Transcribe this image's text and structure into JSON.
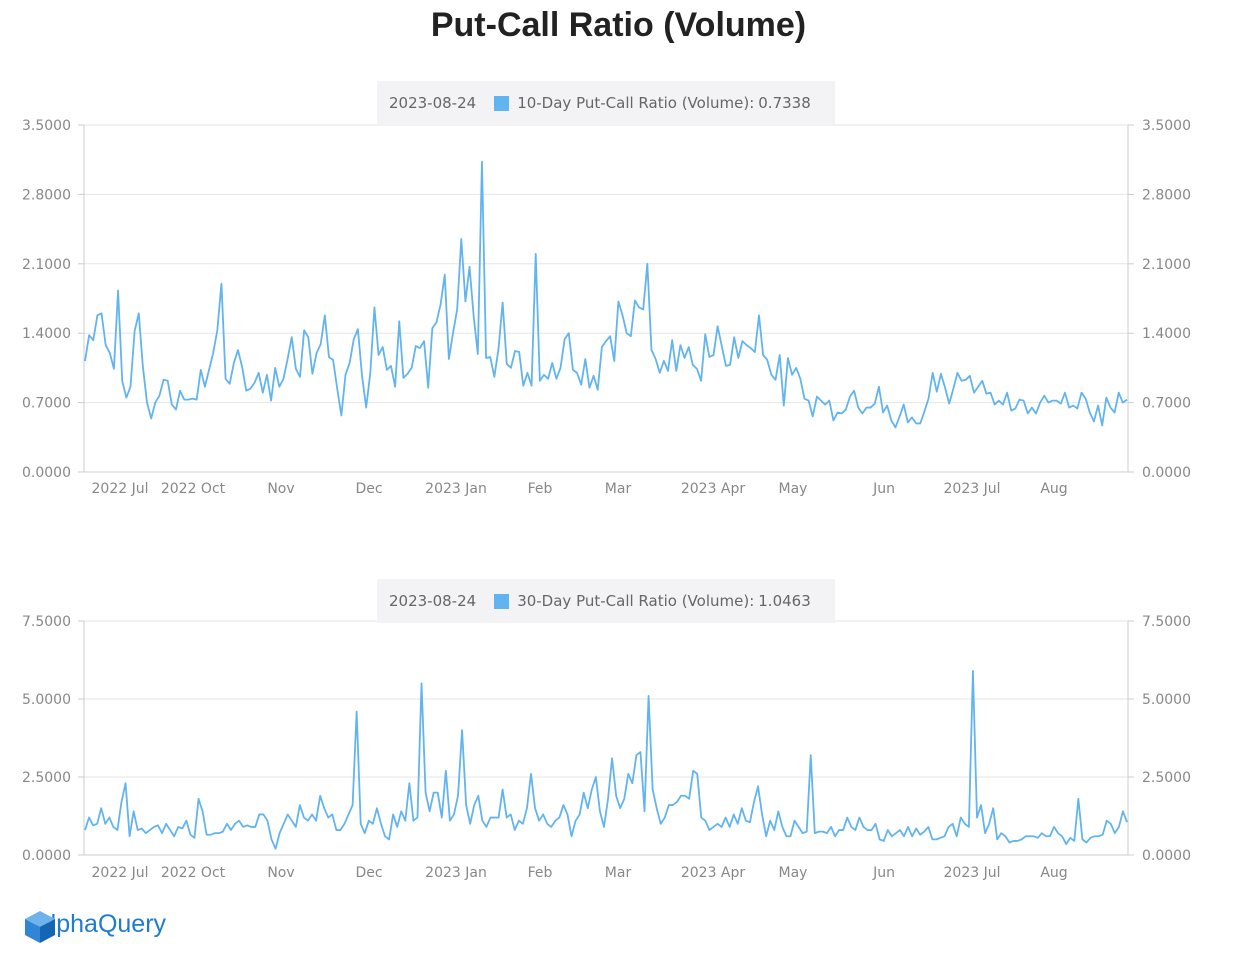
{
  "title": "Put-Call Ratio (Volume)",
  "brand": {
    "name": "AlphaQuery",
    "color": "#1f7bd1",
    "icon": "cube-logo-icon"
  },
  "colors": {
    "line": "#62b4f0",
    "grid": "#e6e6e6",
    "axis": "#cccccc",
    "tick_text": "#888888",
    "legend_bg": "#f3f3f5"
  },
  "chart_data": [
    {
      "type": "line",
      "legend": {
        "date": "2023-08-24",
        "label": "10-Day Put-Call Ratio (Volume):",
        "value": "0.7338"
      },
      "x_tick_labels": [
        "2022 Jul",
        "2022 Oct",
        "Nov",
        "Dec",
        "2023 Jan",
        "Feb",
        "Mar",
        "2023 Apr",
        "May",
        "Jun",
        "2023 Jul",
        "Aug"
      ],
      "y_tick_labels": [
        "0.0000",
        "0.7000",
        "1.4000",
        "2.1000",
        "2.8000",
        "3.5000"
      ],
      "ylim": [
        0,
        3.5
      ],
      "series": [
        {
          "name": "10-Day Put-Call Ratio (Volume)",
          "values": [
            1.12,
            1.38,
            1.33,
            1.58,
            1.6,
            1.28,
            1.2,
            1.04,
            1.83,
            0.92,
            0.75,
            0.86,
            1.42,
            1.6,
            1.06,
            0.7,
            0.54,
            0.7,
            0.77,
            0.93,
            0.92,
            0.68,
            0.63,
            0.82,
            0.73,
            0.73,
            0.74,
            0.73,
            1.03,
            0.86,
            1.03,
            1.2,
            1.43,
            1.9,
            0.94,
            0.89,
            1.1,
            1.23,
            1.06,
            0.82,
            0.84,
            0.9,
            1.0,
            0.8,
            0.98,
            0.72,
            1.05,
            0.86,
            0.94,
            1.14,
            1.36,
            1.04,
            0.96,
            1.43,
            1.36,
            0.99,
            1.2,
            1.29,
            1.58,
            1.16,
            1.13,
            0.84,
            0.57,
            0.98,
            1.1,
            1.34,
            1.44,
            0.97,
            0.65,
            1.0,
            1.66,
            1.18,
            1.26,
            1.03,
            1.07,
            0.86,
            1.52,
            0.95,
            0.99,
            1.05,
            1.27,
            1.25,
            1.32,
            0.85,
            1.45,
            1.51,
            1.69,
            1.99,
            1.14,
            1.4,
            1.64,
            2.35,
            1.72,
            2.07,
            1.57,
            1.19,
            3.13,
            1.15,
            1.16,
            0.96,
            1.24,
            1.71,
            1.09,
            1.05,
            1.22,
            1.21,
            0.87,
            1.0,
            0.87,
            2.2,
            0.92,
            0.98,
            0.94,
            1.1,
            0.94,
            1.05,
            1.34,
            1.4,
            1.03,
            1.0,
            0.88,
            1.14,
            0.85,
            0.97,
            0.83,
            1.26,
            1.32,
            1.37,
            1.12,
            1.72,
            1.58,
            1.4,
            1.37,
            1.73,
            1.66,
            1.64,
            2.1,
            1.23,
            1.14,
            1.0,
            1.12,
            1.02,
            1.33,
            1.02,
            1.28,
            1.15,
            1.26,
            1.08,
            1.04,
            0.92,
            1.39,
            1.16,
            1.18,
            1.47,
            1.27,
            1.07,
            1.08,
            1.36,
            1.15,
            1.32,
            1.28,
            1.25,
            1.21,
            1.58,
            1.18,
            1.13,
            0.98,
            0.93,
            1.18,
            0.67,
            1.15,
            0.98,
            1.05,
            0.94,
            0.74,
            0.72,
            0.56,
            0.76,
            0.72,
            0.68,
            0.72,
            0.52,
            0.6,
            0.59,
            0.63,
            0.76,
            0.82,
            0.65,
            0.59,
            0.65,
            0.65,
            0.69,
            0.86,
            0.6,
            0.67,
            0.52,
            0.45,
            0.56,
            0.68,
            0.5,
            0.55,
            0.49,
            0.49,
            0.61,
            0.74,
            1.0,
            0.81,
            0.99,
            0.85,
            0.69,
            0.84,
            1.0,
            0.92,
            0.93,
            0.97,
            0.8,
            0.86,
            0.92,
            0.79,
            0.8,
            0.68,
            0.72,
            0.68,
            0.8,
            0.62,
            0.64,
            0.73,
            0.72,
            0.59,
            0.65,
            0.59,
            0.7,
            0.77,
            0.7,
            0.72,
            0.72,
            0.69,
            0.8,
            0.65,
            0.67,
            0.64,
            0.8,
            0.74,
            0.6,
            0.51,
            0.67,
            0.47,
            0.75,
            0.65,
            0.6,
            0.8,
            0.7,
            0.73
          ]
        }
      ]
    },
    {
      "type": "line",
      "legend": {
        "date": "2023-08-24",
        "label": "30-Day Put-Call Ratio (Volume):",
        "value": "1.0463"
      },
      "x_tick_labels": [
        "2022 Jul",
        "2022 Oct",
        "Nov",
        "Dec",
        "2023 Jan",
        "Feb",
        "Mar",
        "2023 Apr",
        "May",
        "Jun",
        "2023 Jul",
        "Aug"
      ],
      "y_tick_labels": [
        "0.0000",
        "2.5000",
        "5.0000",
        "7.5000"
      ],
      "ylim": [
        0,
        7.5
      ],
      "series": [
        {
          "name": "30-Day Put-Call Ratio (Volume)",
          "values": [
            0.8,
            1.2,
            0.95,
            1.0,
            1.5,
            1.0,
            1.2,
            0.9,
            0.8,
            1.7,
            2.3,
            0.6,
            1.4,
            0.8,
            0.85,
            0.7,
            0.8,
            0.9,
            0.95,
            0.7,
            1.0,
            0.8,
            0.6,
            0.9,
            0.85,
            1.1,
            0.65,
            0.55,
            1.8,
            1.4,
            0.65,
            0.65,
            0.7,
            0.7,
            0.75,
            1.0,
            0.8,
            1.0,
            1.1,
            0.9,
            0.95,
            0.9,
            0.9,
            1.3,
            1.3,
            1.1,
            0.5,
            0.2,
            0.7,
            1.0,
            1.3,
            1.1,
            0.9,
            1.6,
            1.2,
            1.1,
            1.3,
            1.1,
            1.9,
            1.5,
            1.2,
            1.3,
            0.8,
            0.8,
            1.0,
            1.3,
            1.6,
            4.6,
            1.0,
            0.7,
            1.1,
            1.0,
            1.5,
            1.0,
            0.6,
            0.5,
            1.3,
            0.9,
            1.4,
            1.1,
            2.3,
            1.1,
            1.2,
            5.5,
            2.0,
            1.4,
            2.0,
            2.0,
            1.2,
            2.7,
            1.1,
            1.3,
            1.9,
            4.0,
            1.6,
            1.0,
            1.6,
            1.9,
            1.1,
            0.9,
            1.2,
            1.2,
            1.2,
            2.1,
            1.2,
            1.3,
            0.8,
            1.1,
            1.0,
            1.5,
            2.6,
            1.5,
            1.1,
            1.3,
            1.0,
            0.9,
            1.1,
            1.2,
            1.6,
            1.3,
            0.6,
            1.1,
            1.3,
            2.0,
            1.5,
            2.1,
            2.5,
            1.4,
            0.9,
            1.8,
            3.1,
            1.9,
            1.5,
            1.8,
            2.6,
            2.3,
            3.2,
            3.3,
            1.4,
            5.1,
            2.1,
            1.5,
            1.0,
            1.2,
            1.6,
            1.6,
            1.7,
            1.9,
            1.9,
            1.8,
            2.7,
            2.6,
            1.2,
            1.1,
            0.8,
            0.9,
            1.0,
            0.9,
            1.2,
            0.9,
            1.3,
            1.0,
            1.5,
            1.1,
            1.05,
            1.7,
            2.2,
            1.3,
            0.6,
            1.1,
            0.8,
            1.4,
            0.9,
            0.6,
            0.6,
            1.1,
            0.9,
            0.7,
            0.75,
            3.2,
            0.7,
            0.75,
            0.75,
            0.7,
            0.9,
            0.6,
            0.8,
            0.8,
            1.2,
            0.9,
            0.8,
            1.2,
            0.9,
            0.8,
            0.8,
            1.0,
            0.5,
            0.45,
            0.8,
            0.6,
            0.7,
            0.8,
            0.6,
            0.9,
            0.6,
            0.85,
            0.65,
            0.75,
            0.9,
            0.5,
            0.5,
            0.55,
            0.6,
            0.9,
            1.0,
            0.6,
            1.2,
            1.0,
            0.9,
            5.9,
            1.2,
            1.6,
            0.7,
            1.0,
            1.5,
            0.5,
            0.7,
            0.6,
            0.4,
            0.45,
            0.45,
            0.5,
            0.6,
            0.6,
            0.6,
            0.55,
            0.7,
            0.6,
            0.6,
            0.9,
            0.7,
            0.6,
            0.35,
            0.55,
            0.45,
            1.8,
            0.5,
            0.4,
            0.55,
            0.6,
            0.6,
            0.65,
            1.1,
            1.0,
            0.7,
            0.9,
            1.4,
            1.05
          ]
        }
      ]
    }
  ]
}
